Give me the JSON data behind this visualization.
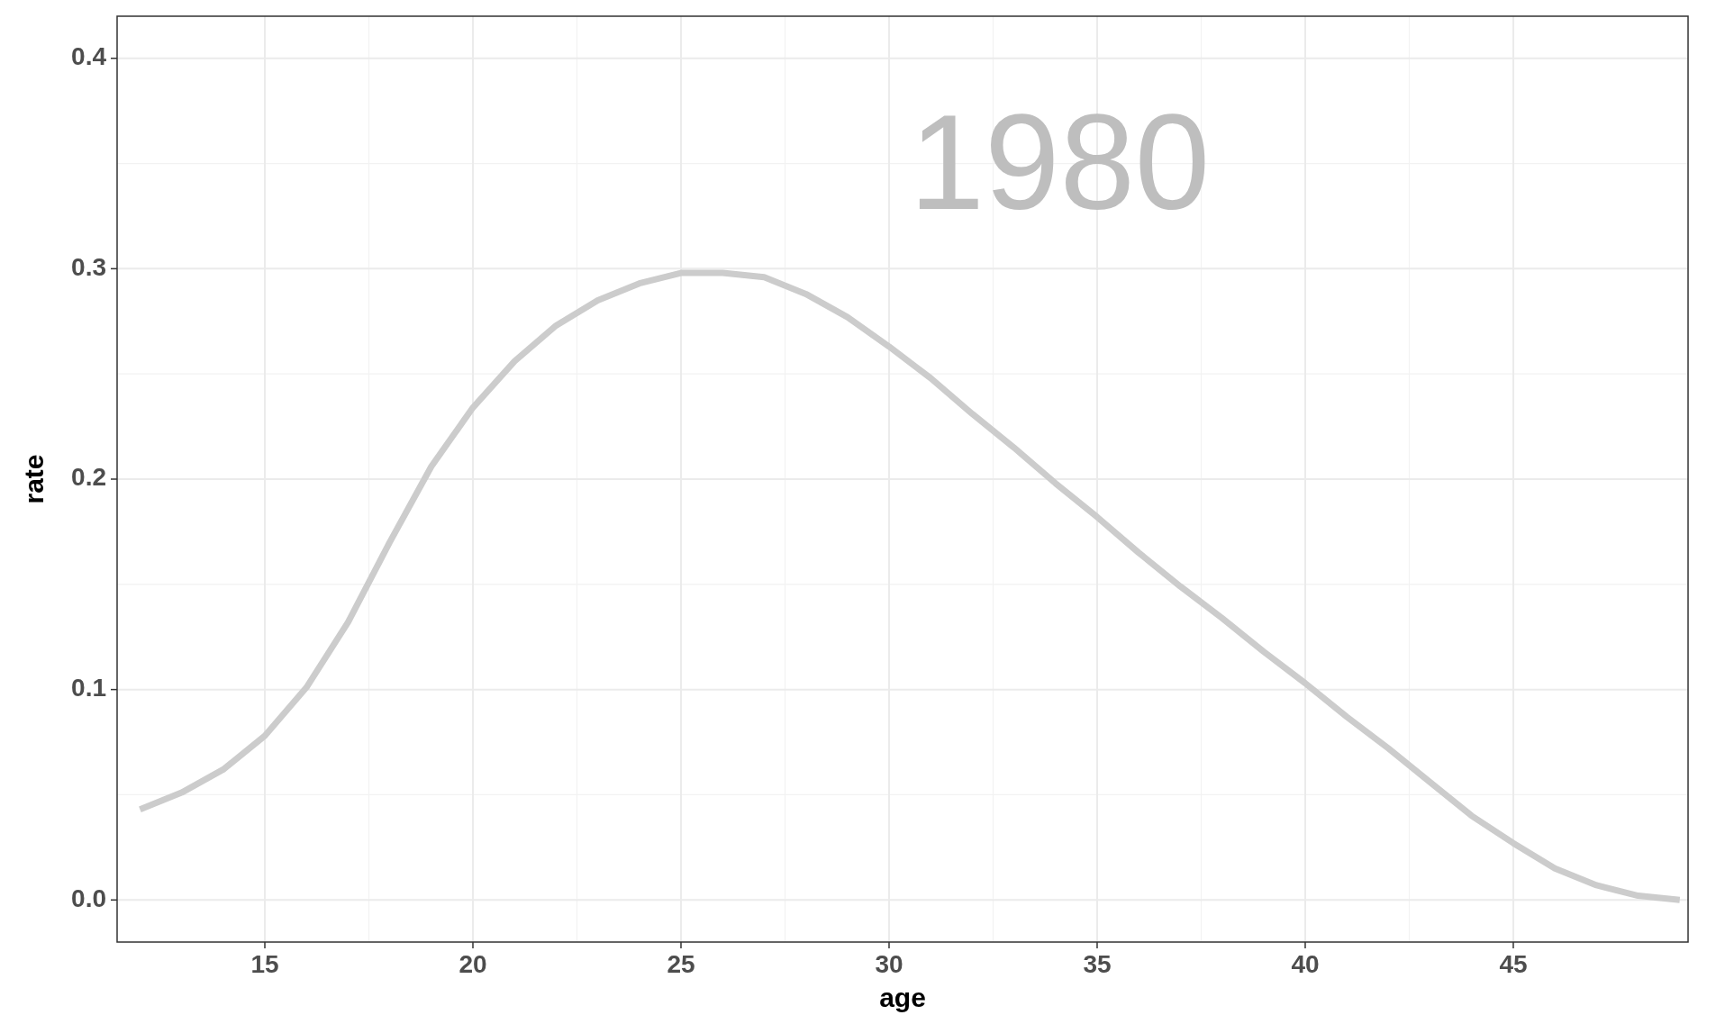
{
  "chart_data": {
    "type": "line",
    "xlabel": "age",
    "ylabel": "rate",
    "annotations": [
      "1980"
    ],
    "x": [
      12,
      13,
      14,
      15,
      16,
      17,
      18,
      19,
      20,
      21,
      22,
      23,
      24,
      25,
      26,
      27,
      28,
      29,
      30,
      31,
      32,
      33,
      34,
      35,
      36,
      37,
      38,
      39,
      40,
      41,
      42,
      43,
      44,
      45,
      46,
      47,
      48,
      49
    ],
    "series": [
      {
        "color": "#cccccc",
        "values": [
          0.043,
          0.051,
          0.062,
          0.078,
          0.101,
          0.132,
          0.17,
          0.206,
          0.234,
          0.256,
          0.273,
          0.285,
          0.293,
          0.298,
          0.298,
          0.296,
          0.288,
          0.277,
          0.263,
          0.248,
          0.231,
          0.215,
          0.198,
          0.182,
          0.165,
          0.149,
          0.134,
          0.118,
          0.103,
          0.087,
          0.072,
          0.056,
          0.04,
          0.027,
          0.015,
          0.007,
          0.002,
          0.0
        ]
      }
    ],
    "xlim": [
      11.45,
      49.2
    ],
    "ylim": [
      -0.02,
      0.42
    ],
    "xticks": [
      15,
      20,
      25,
      30,
      35,
      40,
      45
    ],
    "yticks": [
      {
        "value": 0,
        "label": "0.0"
      },
      {
        "value": 0.1,
        "label": "0.1"
      },
      {
        "value": 0.2,
        "label": "0.2"
      },
      {
        "value": 0.3,
        "label": "0.3"
      },
      {
        "value": 0.4,
        "label": "0.4"
      }
    ],
    "grid": true,
    "marker": "none",
    "line_style": "solid"
  }
}
